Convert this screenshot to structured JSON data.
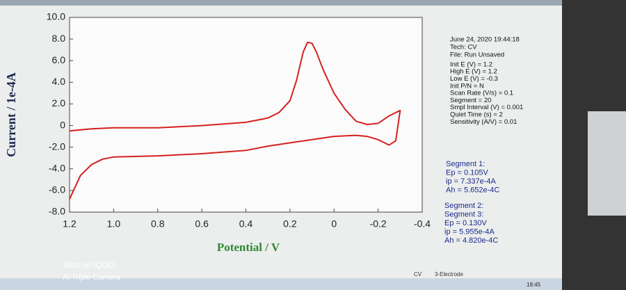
{
  "chart_data": {
    "type": "line",
    "xlabel": "Potential / V",
    "ylabel": "Current / 1e-4A",
    "xlim": [
      1.2,
      -0.4
    ],
    "xticks": [
      1.2,
      {
        "value": 1.0,
        "label": "1.0"
      },
      0.8,
      0.6,
      0.4,
      0.2,
      0,
      -0.2,
      -0.4
    ],
    "ylim": [
      -8,
      10
    ],
    "yticks": [
      {
        "value": 10,
        "label": "10.0"
      },
      {
        "value": 8,
        "label": "8.0"
      },
      {
        "value": 6,
        "label": "6.0"
      },
      {
        "value": 4,
        "label": "4.0"
      },
      {
        "value": 2,
        "label": "2.0"
      },
      0,
      {
        "value": -2,
        "label": "-2.0"
      },
      {
        "value": -4,
        "label": "-4.0"
      },
      {
        "value": -6,
        "label": "-6.0"
      },
      {
        "value": -8,
        "label": "-8.0"
      }
    ],
    "color": "#d62020",
    "x": [
      1.2,
      1.15,
      1.1,
      1.05,
      1.0,
      0.8,
      0.6,
      0.4,
      0.3,
      0.2,
      0.1,
      0.0,
      -0.1,
      -0.15,
      -0.2,
      -0.25,
      -0.28,
      -0.3,
      -0.25,
      -0.2,
      -0.15,
      -0.1,
      -0.05,
      0.0,
      0.05,
      0.08,
      0.1,
      0.12,
      0.14,
      0.17,
      0.2,
      0.25,
      0.3,
      0.4,
      0.6,
      0.8,
      1.0,
      1.1,
      1.2
    ],
    "values": [
      -6.8,
      -4.6,
      -3.6,
      -3.1,
      -2.9,
      -2.8,
      -2.6,
      -2.3,
      -1.9,
      -1.6,
      -1.3,
      -1.0,
      -0.9,
      -1.0,
      -1.3,
      -1.8,
      -1.4,
      1.4,
      0.9,
      0.2,
      0.1,
      0.4,
      1.5,
      3.0,
      5.2,
      6.8,
      7.6,
      7.7,
      6.8,
      4.2,
      2.3,
      1.2,
      0.7,
      0.3,
      0.0,
      -0.2,
      -0.2,
      -0.3,
      -0.5
    ],
    "info": [
      "June 24, 2020  19:44:18",
      "Tech: CV",
      "File: Run Unsaved",
      "Init E (V) = 1.2",
      "High E (V) = 1.2",
      "Low E (V) = -0.3",
      "Init P/N = N",
      "Scan Rate (V/s) = 0.1",
      "Segment = 20",
      "Smpl Interval (V) = 0.001",
      "Quiet Time (s) = 2",
      "Sensitivity (A/V) = 0.01"
    ],
    "segments": [
      "Segment 1:",
      "Ep = 0.105V",
      "ip = 7.337e-4A",
      "Ah = 5.652e-4C",
      "Segment 2:",
      "Segment 3:",
      "Ep = 0.130V",
      "ip = 5.955e-4A",
      "Ah = 4.820e-4C"
    ]
  },
  "status_bar": [
    "CV",
    "3-Electrode",
    "19:45"
  ],
  "watermark": [
    "Shot on iQOO",
    "AI Triple Camera"
  ]
}
